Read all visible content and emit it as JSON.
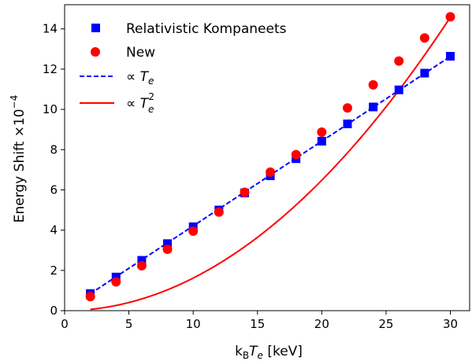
{
  "chart_data": {
    "type": "scatter",
    "xlabel": {
      "main": "k",
      "sub1": "B",
      "italic": "T",
      "sub2": "e",
      "unit": " [keV]"
    },
    "ylabel": {
      "main": "Energy Shift ×10",
      "exp": "−4"
    },
    "xlim": [
      0,
      31.5
    ],
    "ylim": [
      0,
      15.2
    ],
    "xticks": [
      0,
      5,
      10,
      15,
      20,
      25,
      30
    ],
    "yticks": [
      0,
      2,
      4,
      6,
      8,
      10,
      12,
      14
    ],
    "grid": false,
    "legend_position": "top-left",
    "series": [
      {
        "name": "Relativistic Kompaneets",
        "marker": "square",
        "color": "#0000ff",
        "x": [
          2,
          4,
          6,
          8,
          10,
          12,
          14,
          16,
          18,
          20,
          22,
          24,
          26,
          28,
          30
        ],
        "y": [
          0.85,
          1.67,
          2.5,
          3.33,
          4.17,
          5.0,
          5.85,
          6.7,
          7.55,
          8.42,
          9.28,
          10.12,
          10.97,
          11.8,
          12.64
        ]
      },
      {
        "name": "New",
        "marker": "circle",
        "color": "#ff0000",
        "x": [
          2,
          4,
          6,
          8,
          10,
          12,
          14,
          16,
          18,
          20,
          22,
          24,
          26,
          28,
          30
        ],
        "y": [
          0.7,
          1.43,
          2.23,
          3.05,
          3.95,
          4.9,
          5.88,
          6.88,
          7.75,
          8.87,
          10.07,
          11.22,
          12.4,
          13.55,
          14.6
        ]
      }
    ],
    "fits": [
      {
        "label_prefix": "∝ ",
        "label_var": "T",
        "label_sub": "e",
        "label_sup": "",
        "style": "dashed",
        "color": "#0000ff",
        "coef": 0.421,
        "power": 1
      },
      {
        "label_prefix": "∝ ",
        "label_var": "T",
        "label_sub": "e",
        "label_sup": "2",
        "style": "solid",
        "color": "#ff0000",
        "coef": 0.0162,
        "power": 2
      }
    ],
    "fit_range": [
      2,
      30
    ]
  }
}
